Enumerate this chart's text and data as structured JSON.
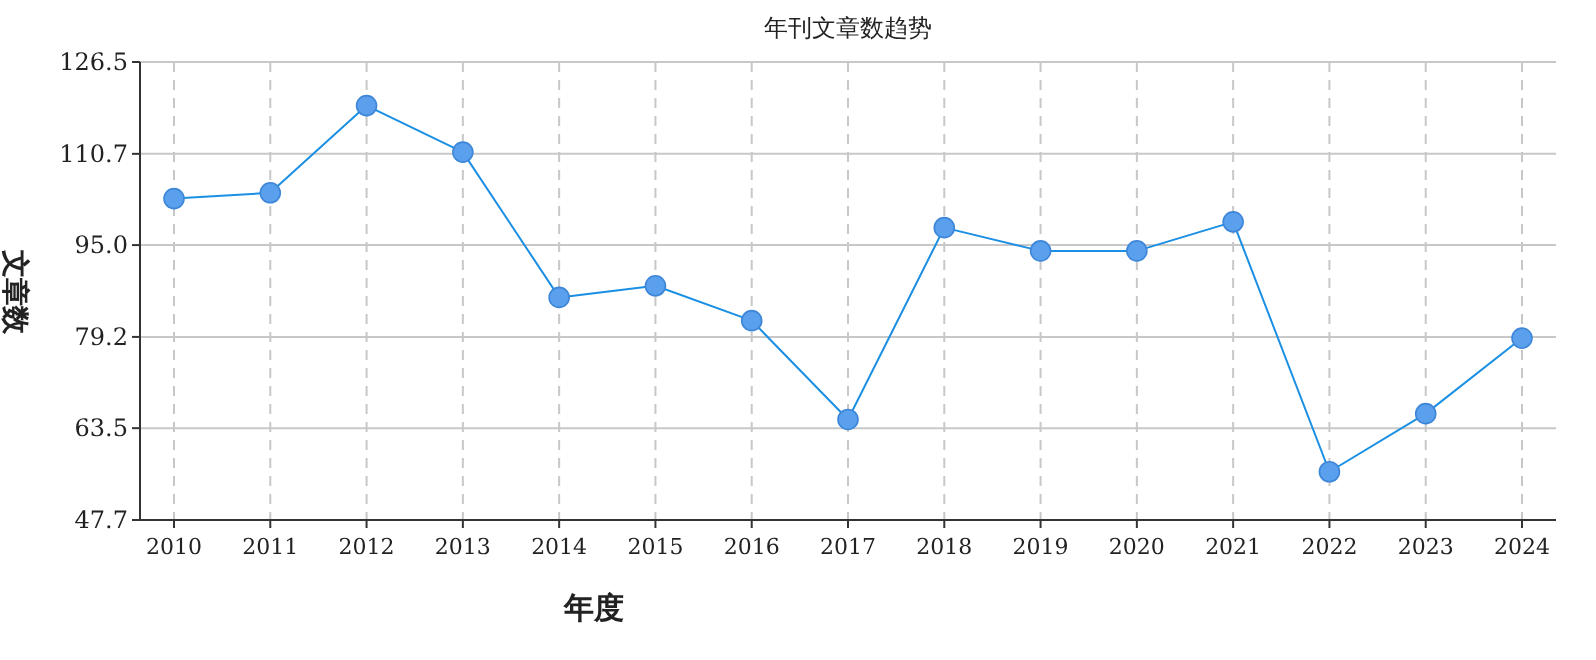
{
  "chart_data": {
    "type": "line",
    "title": "年刊文章数趋势",
    "xlabel": "年度",
    "ylabel": "文章数",
    "categories": [
      "2010",
      "2011",
      "2012",
      "2013",
      "2014",
      "2015",
      "2016",
      "2017",
      "2018",
      "2019",
      "2020",
      "2021",
      "2022",
      "2023",
      "2024"
    ],
    "series": [
      {
        "color": "#1a8fe3",
        "values": [
          103,
          104,
          119,
          111,
          86,
          88,
          82,
          65,
          98,
          94,
          94,
          99,
          56,
          66,
          79
        ]
      }
    ],
    "ylim": [
      47.7,
      126.5
    ],
    "yticks": [
      {
        "value": 47.7,
        "label": "47.7"
      },
      {
        "value": 63.5,
        "label": "63.5"
      },
      {
        "value": 79.2,
        "label": "79.2"
      },
      {
        "value": 95,
        "label": "95.0"
      },
      {
        "value": 110.7,
        "label": "110.7"
      },
      {
        "value": 126.5,
        "label": "126.5"
      }
    ],
    "grid": true,
    "marker": "circle",
    "line_style": "solid"
  }
}
